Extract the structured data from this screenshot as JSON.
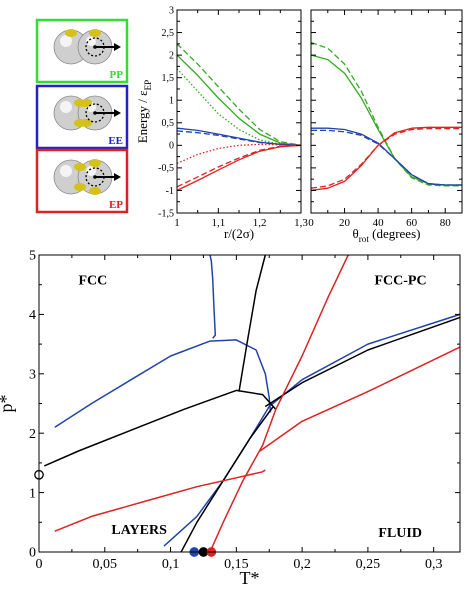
{
  "colors": {
    "green": "#33aa22",
    "blue": "#2244aa",
    "red": "#dd2222",
    "black": "#000000",
    "sphere": "#cfcfcf",
    "patch": "#d4c21a"
  },
  "legend_panels": [
    {
      "label": "PP",
      "color": "#33dd33",
      "patches": [
        "left",
        "right"
      ],
      "arrow": true
    },
    {
      "label": "EE",
      "color": "#2222cc",
      "patches": [
        "left",
        "right"
      ],
      "arrow": true
    },
    {
      "label": "EP",
      "color": "#dd2222",
      "patches": [
        "left",
        "right"
      ],
      "arrow": true
    }
  ],
  "chart_data": [
    {
      "type": "line",
      "xlabel": "r/(2σ)",
      "ylabel": "Energy / ε",
      "ylabel_sub": "EP",
      "xlim": [
        1,
        1.3
      ],
      "ylim": [
        -1.5,
        3
      ],
      "xticks": [
        "1",
        "1,1",
        "1,2",
        "1,3"
      ],
      "xtick_values": [
        1,
        1.1,
        1.2,
        1.3
      ],
      "yticks": [
        "-1,5",
        "-1",
        "-0,5",
        "0",
        "0,5",
        "1",
        "1,5",
        "2",
        "2,5",
        "3"
      ],
      "ytick_values": [
        -1.5,
        -1,
        -0.5,
        0,
        0.5,
        1,
        1.5,
        2,
        2.5,
        3
      ],
      "series": [
        {
          "color": "green",
          "style": "solid",
          "x": [
            1,
            1.05,
            1.1,
            1.15,
            1.2,
            1.25,
            1.3
          ],
          "y": [
            2.0,
            1.55,
            1.05,
            0.6,
            0.25,
            0.05,
            0
          ]
        },
        {
          "color": "green",
          "style": "dashed",
          "x": [
            1,
            1.05,
            1.1,
            1.15,
            1.2,
            1.25,
            1.3
          ],
          "y": [
            2.25,
            1.8,
            1.3,
            0.8,
            0.35,
            0.08,
            0
          ]
        },
        {
          "color": "green",
          "style": "dotted",
          "x": [
            1,
            1.05,
            1.1,
            1.15,
            1.2,
            1.25,
            1.3
          ],
          "y": [
            1.7,
            1.2,
            0.7,
            0.35,
            0.12,
            0.02,
            0
          ]
        },
        {
          "color": "blue",
          "style": "solid",
          "x": [
            1,
            1.05,
            1.1,
            1.15,
            1.2,
            1.25,
            1.3
          ],
          "y": [
            0.38,
            0.33,
            0.25,
            0.16,
            0.07,
            0.02,
            0
          ]
        },
        {
          "color": "blue",
          "style": "dashed",
          "x": [
            1,
            1.05,
            1.1,
            1.15,
            1.2,
            1.25,
            1.3
          ],
          "y": [
            0.32,
            0.28,
            0.22,
            0.14,
            0.06,
            0.02,
            0
          ]
        },
        {
          "color": "red",
          "style": "solid",
          "x": [
            1,
            1.05,
            1.1,
            1.15,
            1.2,
            1.25,
            1.3
          ],
          "y": [
            -1.0,
            -0.78,
            -0.55,
            -0.32,
            -0.13,
            -0.03,
            0
          ]
        },
        {
          "color": "red",
          "style": "dashed",
          "x": [
            1,
            1.05,
            1.1,
            1.15,
            1.2,
            1.25,
            1.3
          ],
          "y": [
            -0.92,
            -0.7,
            -0.48,
            -0.28,
            -0.11,
            -0.02,
            0
          ]
        },
        {
          "color": "red",
          "style": "dotted",
          "x": [
            1,
            1.05,
            1.1,
            1.15,
            1.2,
            1.25,
            1.3
          ],
          "y": [
            -0.4,
            -0.2,
            -0.07,
            0.0,
            0.02,
            0.01,
            0
          ]
        }
      ]
    },
    {
      "type": "line",
      "xlabel": "θ",
      "xlabel_sub": "rot",
      "xlabel_suffix": " (degrees)",
      "xlim": [
        0,
        90
      ],
      "ylim": [
        -1.5,
        3
      ],
      "xticks": [
        "0",
        "20",
        "40",
        "60",
        "80"
      ],
      "xtick_values": [
        0,
        20,
        40,
        60,
        80
      ],
      "yticks": [
        "-1,5",
        "-1",
        "-0,5",
        "0",
        "0,5",
        "1",
        "1,5",
        "2",
        "2,5",
        "3"
      ],
      "ytick_values": [
        -1.5,
        -1,
        -0.5,
        0,
        0.5,
        1,
        1.5,
        2,
        2.5,
        3
      ],
      "series": [
        {
          "color": "green",
          "style": "solid",
          "x": [
            0,
            10,
            20,
            30,
            40,
            50,
            60,
            70,
            80,
            90
          ],
          "y": [
            2.0,
            1.9,
            1.6,
            1.05,
            0.35,
            -0.3,
            -0.7,
            -0.85,
            -0.88,
            -0.88
          ]
        },
        {
          "color": "green",
          "style": "dashed",
          "x": [
            0,
            10,
            20,
            30,
            40,
            50,
            60,
            70,
            80,
            90
          ],
          "y": [
            2.28,
            2.15,
            1.8,
            1.2,
            0.4,
            -0.3,
            -0.72,
            -0.88,
            -0.9,
            -0.9
          ]
        },
        {
          "color": "blue",
          "style": "solid",
          "x": [
            0,
            10,
            20,
            30,
            40,
            50,
            60,
            70,
            80,
            90
          ],
          "y": [
            0.38,
            0.38,
            0.35,
            0.25,
            0.05,
            -0.3,
            -0.65,
            -0.85,
            -0.88,
            -0.88
          ]
        },
        {
          "color": "blue",
          "style": "dashed",
          "x": [
            0,
            10,
            20,
            30,
            40,
            50,
            60,
            70,
            80,
            90
          ],
          "y": [
            0.33,
            0.33,
            0.3,
            0.22,
            0.03,
            -0.3,
            -0.65,
            -0.85,
            -0.88,
            -0.88
          ]
        },
        {
          "color": "red",
          "style": "solid",
          "x": [
            0,
            10,
            20,
            30,
            40,
            50,
            60,
            70,
            80,
            90
          ],
          "y": [
            -1.0,
            -0.95,
            -0.8,
            -0.45,
            0.0,
            0.28,
            0.38,
            0.4,
            0.4,
            0.4
          ]
        },
        {
          "color": "red",
          "style": "dashed",
          "x": [
            0,
            10,
            20,
            30,
            40,
            50,
            60,
            70,
            80,
            90
          ],
          "y": [
            -0.95,
            -0.9,
            -0.75,
            -0.42,
            0.0,
            0.25,
            0.35,
            0.37,
            0.37,
            0.37
          ]
        }
      ]
    },
    {
      "type": "line",
      "xlabel": "T*",
      "ylabel": "p*",
      "xlim": [
        0,
        0.32
      ],
      "ylim": [
        0,
        5
      ],
      "xticks": [
        "0",
        "0,05",
        "0,1",
        "0,15",
        "0,2",
        "0,25",
        "0,3"
      ],
      "xtick_values": [
        0,
        0.05,
        0.1,
        0.15,
        0.2,
        0.25,
        0.3
      ],
      "yticks": [
        "0",
        "1",
        "2",
        "3",
        "4",
        "5"
      ],
      "ytick_values": [
        0,
        1,
        2,
        3,
        4,
        5
      ],
      "region_labels": [
        {
          "text": "FCC",
          "x": 0.03,
          "y": 4.5
        },
        {
          "text": "FCC-PC",
          "x": 0.255,
          "y": 4.5
        },
        {
          "text": "LAYERS",
          "x": 0.055,
          "y": 0.3
        },
        {
          "text": "FLUID",
          "x": 0.258,
          "y": 0.25
        }
      ],
      "series": [
        {
          "color": "blue",
          "x": [
            0.132,
            0.134,
            0.133,
            0.132,
            0.131,
            0.13,
            0.13
          ],
          "y": [
            3.6,
            3.65,
            4.1,
            4.6,
            4.9,
            5.0,
            5.0
          ]
        },
        {
          "color": "blue",
          "x": [
            0.012,
            0.04,
            0.07,
            0.1,
            0.13,
            0.15,
            0.165,
            0.172,
            0.175,
            0.176
          ],
          "y": [
            2.1,
            2.5,
            2.9,
            3.3,
            3.55,
            3.57,
            3.4,
            3.0,
            2.6,
            2.35
          ]
        },
        {
          "color": "blue",
          "x": [
            0.095,
            0.12,
            0.14,
            0.16,
            0.175,
            0.2,
            0.25,
            0.32
          ],
          "y": [
            0.1,
            0.6,
            1.2,
            1.9,
            2.45,
            2.9,
            3.5,
            4.0
          ]
        },
        {
          "color": "black",
          "x": [
            0.004,
            0.03,
            0.07,
            0.11,
            0.15,
            0.17,
            0.18
          ],
          "y": [
            1.45,
            1.7,
            2.05,
            2.4,
            2.72,
            2.65,
            2.4
          ]
        },
        {
          "color": "black",
          "x": [
            0.152,
            0.158,
            0.165,
            0.172
          ],
          "y": [
            2.7,
            3.5,
            4.4,
            5.0
          ]
        },
        {
          "color": "black",
          "x": [
            0.108,
            0.12,
            0.14,
            0.16,
            0.178
          ],
          "y": [
            0.0,
            0.5,
            1.2,
            1.9,
            2.45
          ]
        },
        {
          "color": "black",
          "x": [
            0.172,
            0.2,
            0.25,
            0.32
          ],
          "y": [
            2.45,
            2.85,
            3.4,
            3.95
          ]
        },
        {
          "color": "red",
          "x": [
            0.012,
            0.04,
            0.08,
            0.12,
            0.15,
            0.17,
            0.172
          ],
          "y": [
            0.35,
            0.6,
            0.85,
            1.1,
            1.25,
            1.35,
            1.38
          ]
        },
        {
          "color": "red",
          "x": [
            0.13,
            0.14,
            0.155,
            0.17,
            0.18,
            0.2,
            0.22,
            0.235
          ],
          "y": [
            0.0,
            0.5,
            1.2,
            1.8,
            2.4,
            3.3,
            4.3,
            5.0
          ]
        },
        {
          "color": "red",
          "x": [
            0.168,
            0.2,
            0.25,
            0.32
          ],
          "y": [
            1.7,
            2.2,
            2.7,
            3.45
          ]
        }
      ],
      "markers": [
        {
          "x": 0.118,
          "y": 0,
          "color": "blue",
          "filled": true
        },
        {
          "x": 0.125,
          "y": 0,
          "color": "black",
          "filled": true
        },
        {
          "x": 0.131,
          "y": 0,
          "color": "red",
          "filled": true
        },
        {
          "x": 0.0,
          "y": 1.3,
          "color": "black",
          "filled": false
        }
      ]
    }
  ]
}
